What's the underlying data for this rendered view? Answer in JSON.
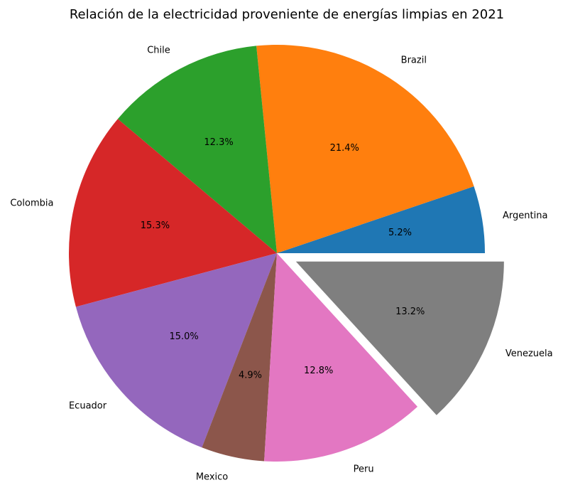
{
  "chart_data": {
    "type": "pie",
    "title": "Relación de la electricidad proveniente de energías limpias en 2021",
    "start_angle_deg": 0,
    "counterclock": true,
    "exploded": [
      "Venezuela"
    ],
    "slices": [
      {
        "label": "Argentina",
        "value": 5.2,
        "pct_label": "5.2%",
        "color": "#1f77b4"
      },
      {
        "label": "Brazil",
        "value": 21.4,
        "pct_label": "21.4%",
        "color": "#ff7f0e"
      },
      {
        "label": "Chile",
        "value": 12.3,
        "pct_label": "12.3%",
        "color": "#2ca02c"
      },
      {
        "label": "Colombia",
        "value": 15.3,
        "pct_label": "15.3%",
        "color": "#d62728"
      },
      {
        "label": "Ecuador",
        "value": 15.0,
        "pct_label": "15.0%",
        "color": "#9467bd"
      },
      {
        "label": "Mexico",
        "value": 4.9,
        "pct_label": "4.9%",
        "color": "#8c564b"
      },
      {
        "label": "Peru",
        "value": 12.8,
        "pct_label": "12.8%",
        "color": "#e377c2"
      },
      {
        "label": "Venezuela",
        "value": 13.2,
        "pct_label": "13.2%",
        "color": "#7f7f7f"
      }
    ]
  }
}
